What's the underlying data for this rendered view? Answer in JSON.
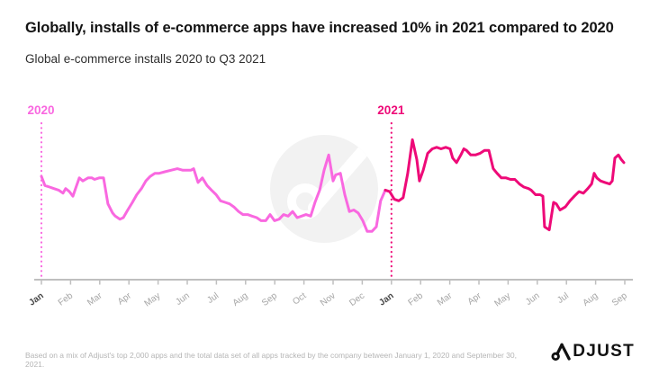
{
  "header": {
    "title": "Globally, installs of e-commerce apps have increased 10% in 2021 compared to 2020",
    "subtitle": "Global e-commerce installs 2020 to Q3 2021"
  },
  "chart_data": {
    "type": "line",
    "title": "Global e-commerce installs 2020 to Q3 2021",
    "x_axis": {
      "tick_labels": [
        "Jan",
        "Feb",
        "Mar",
        "Apr",
        "May",
        "Jun",
        "Jul",
        "Aug",
        "Sep",
        "Oct",
        "Nov",
        "Dec",
        "Jan",
        "Feb",
        "Mar",
        "Apr",
        "May",
        "Jun",
        "Jul",
        "Aug",
        "Sep"
      ],
      "emphasized_ticks": [
        0,
        12
      ]
    },
    "y_axis": {
      "visible": false,
      "note": "No y-axis shown in source; values are a relative install-volume index 0-100 estimated from line height"
    },
    "annotations": [
      {
        "label": "2020",
        "at_month": 0,
        "color": "#f968e0",
        "style": "dotted-vertical-line"
      },
      {
        "label": "2021",
        "at_month": 12,
        "color": "#ee0a78",
        "style": "dotted-vertical-line"
      }
    ],
    "legend": "none",
    "grid": false,
    "series": [
      {
        "name": "2020",
        "color": "#f968e0",
        "points": [
          [
            0,
            67
          ],
          [
            0.12,
            61
          ],
          [
            0.28,
            60
          ],
          [
            0.43,
            59
          ],
          [
            0.59,
            58
          ],
          [
            0.74,
            56
          ],
          [
            0.83,
            59
          ],
          [
            0.96,
            57
          ],
          [
            1.08,
            54
          ],
          [
            1.17,
            59
          ],
          [
            1.3,
            66
          ],
          [
            1.42,
            64
          ],
          [
            1.51,
            65
          ],
          [
            1.6,
            66
          ],
          [
            1.73,
            66
          ],
          [
            1.82,
            65
          ],
          [
            1.98,
            66
          ],
          [
            2.13,
            66
          ],
          [
            2.28,
            49
          ],
          [
            2.44,
            43
          ],
          [
            2.53,
            41
          ],
          [
            2.69,
            39
          ],
          [
            2.81,
            40
          ],
          [
            2.96,
            45
          ],
          [
            3.12,
            50
          ],
          [
            3.27,
            55
          ],
          [
            3.43,
            59
          ],
          [
            3.58,
            64
          ],
          [
            3.73,
            67
          ],
          [
            3.89,
            69
          ],
          [
            4.04,
            69
          ],
          [
            4.23,
            70
          ],
          [
            4.44,
            71
          ],
          [
            4.66,
            72
          ],
          [
            4.85,
            71
          ],
          [
            5.12,
            71
          ],
          [
            5.22,
            72
          ],
          [
            5.37,
            63
          ],
          [
            5.52,
            66
          ],
          [
            5.68,
            61
          ],
          [
            5.83,
            58
          ],
          [
            5.99,
            55
          ],
          [
            6.14,
            51
          ],
          [
            6.3,
            50
          ],
          [
            6.45,
            49
          ],
          [
            6.6,
            47
          ],
          [
            6.76,
            44
          ],
          [
            6.91,
            42
          ],
          [
            7.07,
            42
          ],
          [
            7.22,
            41
          ],
          [
            7.38,
            40
          ],
          [
            7.53,
            38
          ],
          [
            7.69,
            38
          ],
          [
            7.84,
            42
          ],
          [
            7.99,
            38
          ],
          [
            8.15,
            39
          ],
          [
            8.3,
            42
          ],
          [
            8.46,
            41
          ],
          [
            8.61,
            44
          ],
          [
            8.77,
            40
          ],
          [
            8.92,
            41
          ],
          [
            9.07,
            42
          ],
          [
            9.23,
            41
          ],
          [
            9.38,
            50
          ],
          [
            9.54,
            58
          ],
          [
            9.69,
            71
          ],
          [
            9.85,
            81
          ],
          [
            10,
            64
          ],
          [
            10.09,
            68
          ],
          [
            10.25,
            69
          ],
          [
            10.4,
            55
          ],
          [
            10.56,
            44
          ],
          [
            10.71,
            45
          ],
          [
            10.86,
            43
          ],
          [
            11.02,
            38
          ],
          [
            11.17,
            31
          ],
          [
            11.33,
            31
          ],
          [
            11.48,
            34
          ],
          [
            11.63,
            51
          ],
          [
            11.79,
            58
          ]
        ]
      },
      {
        "name": "2021",
        "color": "#ee0a78",
        "points": [
          [
            11.79,
            58
          ],
          [
            11.94,
            57
          ],
          [
            12.1,
            52
          ],
          [
            12.25,
            51
          ],
          [
            12.4,
            53
          ],
          [
            12.56,
            69
          ],
          [
            12.72,
            91
          ],
          [
            12.87,
            78
          ],
          [
            12.96,
            64
          ],
          [
            13.09,
            71
          ],
          [
            13.24,
            82
          ],
          [
            13.4,
            85
          ],
          [
            13.55,
            86
          ],
          [
            13.7,
            85
          ],
          [
            13.86,
            86
          ],
          [
            14.01,
            85
          ],
          [
            14.1,
            79
          ],
          [
            14.23,
            76
          ],
          [
            14.38,
            81
          ],
          [
            14.48,
            85
          ],
          [
            14.57,
            84
          ],
          [
            14.72,
            81
          ],
          [
            14.88,
            81
          ],
          [
            15.03,
            82
          ],
          [
            15.19,
            84
          ],
          [
            15.34,
            84
          ],
          [
            15.49,
            72
          ],
          [
            15.62,
            69
          ],
          [
            15.77,
            66
          ],
          [
            15.93,
            66
          ],
          [
            16.08,
            65
          ],
          [
            16.23,
            65
          ],
          [
            16.39,
            62
          ],
          [
            16.54,
            60
          ],
          [
            16.7,
            59
          ],
          [
            16.79,
            58
          ],
          [
            16.94,
            55
          ],
          [
            17.1,
            55
          ],
          [
            17.19,
            54
          ],
          [
            17.25,
            34
          ],
          [
            17.41,
            32
          ],
          [
            17.56,
            50
          ],
          [
            17.65,
            49
          ],
          [
            17.78,
            45
          ],
          [
            17.87,
            46
          ],
          [
            17.96,
            47
          ],
          [
            18.12,
            51
          ],
          [
            18.27,
            54
          ],
          [
            18.43,
            57
          ],
          [
            18.58,
            56
          ],
          [
            18.73,
            59
          ],
          [
            18.86,
            62
          ],
          [
            18.95,
            69
          ],
          [
            19.04,
            66
          ],
          [
            19.17,
            64
          ],
          [
            19.32,
            63
          ],
          [
            19.48,
            62
          ],
          [
            19.57,
            64
          ],
          [
            19.66,
            79
          ],
          [
            19.78,
            81
          ],
          [
            19.88,
            78
          ],
          [
            19.97,
            76
          ]
        ]
      }
    ]
  },
  "footer": {
    "source_note": "Based on a mix of Adjust's top 2,000 apps and the total data set of all apps tracked by the company between January 1, 2020 and September 30, 2021.",
    "logo_brand": "ADJUST",
    "logo_text_after_a": "DJUST"
  },
  "colors": {
    "background": "#ffffff",
    "line_2020": "#f968e0",
    "line_2021": "#ee0a78",
    "axis": "#bfbfbf",
    "watermark_circle": "#f2f2f2",
    "title_text": "#141414",
    "muted_text": "#b5b5b5"
  }
}
